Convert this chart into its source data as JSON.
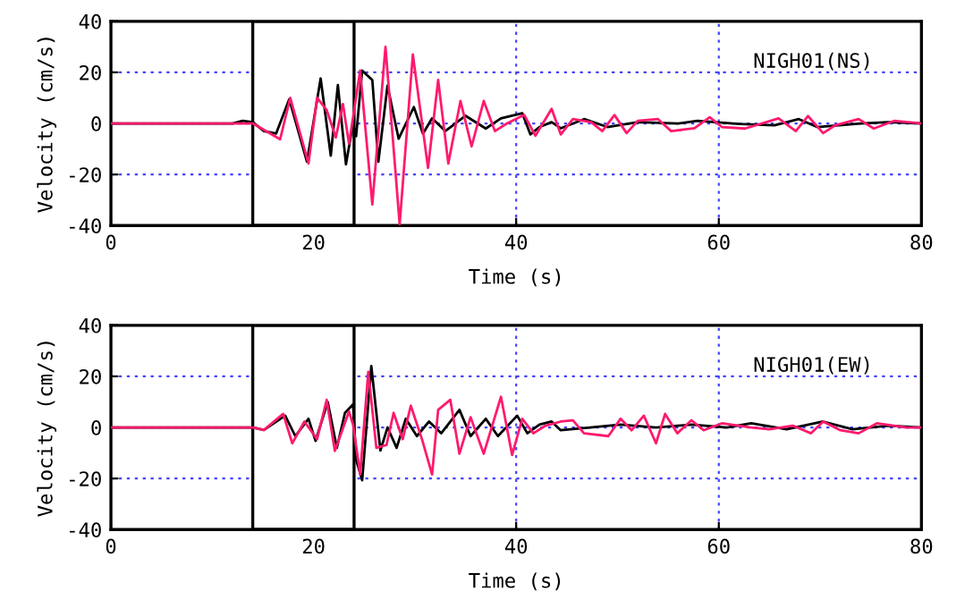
{
  "chart_data": [
    {
      "type": "line",
      "xlabel": "Time (s)",
      "ylabel": "Velocity (cm/s)",
      "annotations": [
        "NIGH01(NS)"
      ],
      "xlim": [
        0,
        80
      ],
      "ylim": [
        -40,
        40
      ],
      "xticks": [
        0,
        20,
        40,
        60,
        80
      ],
      "yticks": [
        -40,
        -20,
        0,
        20,
        40
      ],
      "grid": true,
      "line_style": "solid",
      "marker": "none",
      "bands": [
        {
          "axis": "x",
          "from": 14,
          "to": 24,
          "color": "#ffffff"
        }
      ],
      "series": [
        {
          "color": "#000000",
          "x": [
            0,
            12,
            13,
            14,
            15.1,
            16.3,
            17.6,
            19.35,
            20.7,
            21.7,
            22.4,
            23.2,
            23.9,
            24.2,
            24.8,
            25.8,
            26.4,
            27.3,
            28.4,
            29.9,
            30.8,
            31.7,
            33,
            35,
            37,
            38.5,
            40.6,
            41.4,
            42.3,
            43.5,
            44.4,
            46.7,
            49,
            52,
            56,
            57.9,
            62,
            65.5,
            67.9,
            69.7,
            74,
            76.7,
            80
          ],
          "values": [
            0,
            0,
            1,
            0.5,
            -3,
            -4,
            9.5,
            -15,
            17.6,
            -12.6,
            15,
            -16,
            0,
            -5,
            20.7,
            17,
            -15,
            14.8,
            -6,
            6.4,
            -4,
            2,
            -3,
            3,
            -2,
            2,
            4,
            -4.3,
            -1.4,
            0.5,
            -1.9,
            1.7,
            -1.4,
            0.5,
            0,
            1,
            -0.2,
            -0.7,
            1.7,
            -1.4,
            0,
            0.5,
            0
          ]
        },
        {
          "color": "#ff1a6e",
          "x": [
            0,
            14,
            16.7,
            17.7,
            19.5,
            20.35,
            21.3,
            22.2,
            22.9,
            23.5,
            24.6,
            25.8,
            27.1,
            28.5,
            29.8,
            31.3,
            32.3,
            33.3,
            34.5,
            35.6,
            36.8,
            37.9,
            39.1,
            40.8,
            41.9,
            43.5,
            44.4,
            45.6,
            47.4,
            48.5,
            49.7,
            50.9,
            52,
            54,
            55.3,
            57.6,
            59.1,
            60.3,
            62.6,
            65.9,
            67.6,
            68.8,
            70.3,
            71.5,
            73.8,
            75.3,
            77.3,
            80
          ],
          "values": [
            0,
            0,
            -6.2,
            10,
            -15.7,
            10,
            5.2,
            -5.5,
            7.6,
            -8,
            20.7,
            -31.7,
            30,
            -39.5,
            27,
            -17.4,
            17,
            -15.7,
            8.8,
            -9,
            8.8,
            -3,
            0,
            3.3,
            -4.8,
            5.7,
            -4.3,
            1.7,
            0.5,
            -3,
            3.3,
            -3.8,
            1,
            1.7,
            -3,
            -1.9,
            2.4,
            -1.4,
            -2,
            2,
            -3,
            2.9,
            -3.8,
            -0.7,
            1.7,
            -2,
            1,
            0
          ]
        }
      ]
    },
    {
      "type": "line",
      "xlabel": "Time (s)",
      "ylabel": "Velocity (cm/s)",
      "annotations": [
        "NIGH01(EW)"
      ],
      "xlim": [
        0,
        80
      ],
      "ylim": [
        -40,
        40
      ],
      "xticks": [
        0,
        20,
        40,
        60,
        80
      ],
      "yticks": [
        -40,
        -20,
        0,
        20,
        40
      ],
      "grid": true,
      "line_style": "solid",
      "marker": "none",
      "bands": [
        {
          "axis": "x",
          "from": 14,
          "to": 24,
          "color": "#ffffff"
        }
      ],
      "series": [
        {
          "color": "#000000",
          "x": [
            0,
            14,
            15.1,
            17.2,
            18.2,
            19.5,
            20.2,
            21.4,
            22.3,
            23.1,
            23.9,
            24.2,
            24.8,
            25.7,
            26.6,
            27.3,
            28.2,
            29.1,
            30.2,
            31.4,
            32.6,
            34.4,
            35.5,
            37,
            38.2,
            40.1,
            41.1,
            42.3,
            43.5,
            44.4,
            47.3,
            50.3,
            53.8,
            57.3,
            60.8,
            63.2,
            66.7,
            70.3,
            73.2,
            76.7,
            80
          ],
          "values": [
            0,
            0,
            -1,
            4.6,
            -3.4,
            3.4,
            -5.3,
            10,
            -8,
            5.7,
            9,
            -12.6,
            -20.7,
            24,
            -9,
            0,
            -8,
            3.4,
            -3.4,
            2.3,
            -2.3,
            6.9,
            -3.4,
            3.4,
            -3.4,
            4.6,
            -2.3,
            1.1,
            2.3,
            -1.1,
            0,
            1.1,
            0,
            1.1,
            0,
            1.6,
            -0.7,
            2.3,
            -0.7,
            0.7,
            0
          ]
        },
        {
          "color": "#ff1a6e",
          "x": [
            0,
            14,
            15.1,
            17,
            17.9,
            19.1,
            20.35,
            21.3,
            22.1,
            23.5,
            23.9,
            24.6,
            25.4,
            26.2,
            27.2,
            27.9,
            28.8,
            29.6,
            30.7,
            31.7,
            32.3,
            33.5,
            34.4,
            35.5,
            36.8,
            38.5,
            39.6,
            40.6,
            41.7,
            42.9,
            44.4,
            45.6,
            46.7,
            49.1,
            50.3,
            51.4,
            52.6,
            53.8,
            54.7,
            55.9,
            57.3,
            58.5,
            60.3,
            63.2,
            65,
            67.3,
            69.1,
            70.3,
            72,
            73.8,
            75.6,
            78.5,
            80
          ],
          "values": [
            0,
            0,
            -1,
            5.3,
            -6.2,
            2.3,
            -4.6,
            10.8,
            -9.2,
            6.2,
            1.1,
            -18.4,
            21.8,
            -8,
            -6.9,
            5.7,
            -4.6,
            8.5,
            -4.6,
            -18.4,
            6.9,
            10.8,
            -10.3,
            4,
            -10.3,
            12,
            -10.8,
            3.4,
            -2.3,
            0.7,
            2.3,
            2.8,
            -2.3,
            -3.4,
            3.4,
            -1.1,
            4.6,
            -6.2,
            5.3,
            -2.3,
            2.8,
            -1.1,
            1.6,
            0,
            -0.7,
            0.7,
            -2.3,
            2.3,
            -1.1,
            -2.3,
            1.6,
            0,
            0
          ]
        }
      ]
    }
  ]
}
